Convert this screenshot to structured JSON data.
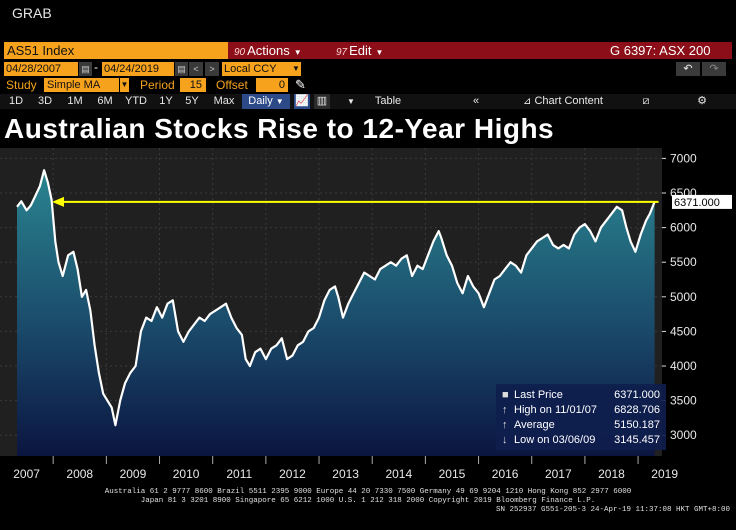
{
  "window": {
    "title": "GRAB"
  },
  "header": {
    "ticker": "AS51 Index",
    "actions_num": "90",
    "actions_label": "Actions",
    "edit_num": "97",
    "edit_label": "Edit",
    "security_code": "G 6397: ASX 200"
  },
  "controls": {
    "date_from": "04/28/2007",
    "date_to": "04/24/2019",
    "dash": "-",
    "prev": "<",
    "next": ">",
    "currency": "Local CCY",
    "study_label": "Study",
    "study_value": "Simple MA",
    "period_label": "Period",
    "period_value": "15",
    "offset_label": "Offset",
    "offset_value": "0"
  },
  "toolbar": {
    "periods": [
      "1D",
      "3D",
      "1M",
      "6M",
      "YTD",
      "1Y",
      "5Y",
      "Max"
    ],
    "frequency": "Daily",
    "table_label": "Table",
    "chart_content_label": "Chart Content"
  },
  "chart_title": "Australian Stocks Rise to 12-Year Highs",
  "chart_data": {
    "type": "area",
    "title": "Australian Stocks Rise to 12-Year Highs",
    "x_labels": [
      "2007",
      "2008",
      "2009",
      "2010",
      "2011",
      "2012",
      "2013",
      "2014",
      "2015",
      "2016",
      "2017",
      "2018",
      "2019"
    ],
    "y_ticks": [
      3000,
      3500,
      4000,
      4500,
      5000,
      5500,
      6000,
      6500,
      7000
    ],
    "ylim": [
      2700,
      7150
    ],
    "series": [
      {
        "name": "ASX 200 Last Price",
        "points": [
          [
            2007.32,
            6300
          ],
          [
            2007.4,
            6380
          ],
          [
            2007.5,
            6250
          ],
          [
            2007.58,
            6320
          ],
          [
            2007.66,
            6450
          ],
          [
            2007.75,
            6600
          ],
          [
            2007.83,
            6829
          ],
          [
            2007.9,
            6650
          ],
          [
            2007.97,
            6400
          ],
          [
            2008.04,
            5800
          ],
          [
            2008.1,
            5500
          ],
          [
            2008.18,
            5300
          ],
          [
            2008.28,
            5600
          ],
          [
            2008.38,
            5650
          ],
          [
            2008.46,
            5400
          ],
          [
            2008.54,
            5000
          ],
          [
            2008.62,
            5100
          ],
          [
            2008.7,
            4800
          ],
          [
            2008.78,
            4300
          ],
          [
            2008.86,
            3900
          ],
          [
            2008.94,
            3600
          ],
          [
            2009.02,
            3500
          ],
          [
            2009.1,
            3400
          ],
          [
            2009.17,
            3145
          ],
          [
            2009.26,
            3500
          ],
          [
            2009.35,
            3750
          ],
          [
            2009.45,
            3900
          ],
          [
            2009.55,
            4000
          ],
          [
            2009.65,
            4500
          ],
          [
            2009.75,
            4700
          ],
          [
            2009.85,
            4650
          ],
          [
            2009.95,
            4850
          ],
          [
            2010.05,
            4700
          ],
          [
            2010.15,
            4900
          ],
          [
            2010.25,
            4950
          ],
          [
            2010.35,
            4500
          ],
          [
            2010.45,
            4350
          ],
          [
            2010.55,
            4500
          ],
          [
            2010.65,
            4600
          ],
          [
            2010.75,
            4700
          ],
          [
            2010.85,
            4650
          ],
          [
            2010.95,
            4750
          ],
          [
            2011.05,
            4800
          ],
          [
            2011.15,
            4850
          ],
          [
            2011.25,
            4900
          ],
          [
            2011.35,
            4700
          ],
          [
            2011.45,
            4550
          ],
          [
            2011.55,
            4450
          ],
          [
            2011.62,
            4100
          ],
          [
            2011.7,
            4000
          ],
          [
            2011.8,
            4200
          ],
          [
            2011.9,
            4250
          ],
          [
            2012.0,
            4100
          ],
          [
            2012.1,
            4250
          ],
          [
            2012.2,
            4300
          ],
          [
            2012.3,
            4400
          ],
          [
            2012.4,
            4100
          ],
          [
            2012.5,
            4150
          ],
          [
            2012.6,
            4300
          ],
          [
            2012.7,
            4350
          ],
          [
            2012.8,
            4500
          ],
          [
            2012.9,
            4550
          ],
          [
            2013.0,
            4700
          ],
          [
            2013.1,
            4950
          ],
          [
            2013.2,
            5100
          ],
          [
            2013.3,
            5150
          ],
          [
            2013.36,
            5000
          ],
          [
            2013.45,
            4700
          ],
          [
            2013.55,
            4900
          ],
          [
            2013.65,
            5050
          ],
          [
            2013.75,
            5200
          ],
          [
            2013.85,
            5350
          ],
          [
            2013.95,
            5300
          ],
          [
            2014.05,
            5250
          ],
          [
            2014.15,
            5400
          ],
          [
            2014.25,
            5450
          ],
          [
            2014.35,
            5500
          ],
          [
            2014.45,
            5450
          ],
          [
            2014.55,
            5550
          ],
          [
            2014.65,
            5600
          ],
          [
            2014.75,
            5300
          ],
          [
            2014.85,
            5450
          ],
          [
            2014.95,
            5400
          ],
          [
            2015.05,
            5600
          ],
          [
            2015.15,
            5800
          ],
          [
            2015.25,
            5950
          ],
          [
            2015.3,
            5850
          ],
          [
            2015.4,
            5600
          ],
          [
            2015.5,
            5450
          ],
          [
            2015.6,
            5200
          ],
          [
            2015.7,
            5050
          ],
          [
            2015.8,
            5300
          ],
          [
            2015.9,
            5150
          ],
          [
            2016.0,
            5050
          ],
          [
            2016.1,
            4850
          ],
          [
            2016.2,
            5050
          ],
          [
            2016.3,
            5250
          ],
          [
            2016.4,
            5300
          ],
          [
            2016.5,
            5400
          ],
          [
            2016.6,
            5500
          ],
          [
            2016.7,
            5450
          ],
          [
            2016.8,
            5350
          ],
          [
            2016.9,
            5600
          ],
          [
            2017.0,
            5700
          ],
          [
            2017.1,
            5800
          ],
          [
            2017.2,
            5850
          ],
          [
            2017.3,
            5900
          ],
          [
            2017.4,
            5750
          ],
          [
            2017.5,
            5700
          ],
          [
            2017.6,
            5750
          ],
          [
            2017.7,
            5700
          ],
          [
            2017.8,
            5900
          ],
          [
            2017.9,
            6000
          ],
          [
            2018.0,
            6050
          ],
          [
            2018.1,
            5950
          ],
          [
            2018.2,
            5800
          ],
          [
            2018.3,
            6000
          ],
          [
            2018.4,
            6100
          ],
          [
            2018.5,
            6200
          ],
          [
            2018.6,
            6300
          ],
          [
            2018.7,
            6250
          ],
          [
            2018.78,
            6000
          ],
          [
            2018.86,
            5800
          ],
          [
            2018.95,
            5650
          ],
          [
            2019.05,
            5900
          ],
          [
            2019.15,
            6100
          ],
          [
            2019.22,
            6200
          ],
          [
            2019.31,
            6371
          ]
        ]
      }
    ],
    "horizontal_line": {
      "value": 6371,
      "label": "6371.000"
    },
    "legend": {
      "position": "bottom-right",
      "rows": [
        {
          "label": "Last Price",
          "value": "6371.000"
        },
        {
          "label": "High on 11/01/07",
          "value": "6828.706"
        },
        {
          "label": "Average",
          "value": "5150.187"
        },
        {
          "label": "Low on 03/06/09",
          "value": "3145.457"
        }
      ]
    }
  },
  "footer": {
    "line1": "Australia 61 2 9777 8600 Brazil 5511 2395 9000 Europe 44 20 7330 7500 Germany 49 69 9204 1210 Hong Kong 852 2977 6000",
    "line2": "Japan 81 3 3201 8900        Singapore 65 6212 1000        U.S. 1 212 318 2000        Copyright 2019 Bloomberg Finance L.P.",
    "line3": "SN 252937 G551-205-3 24-Apr-19 11:37:08 HKT  GMT+8:00"
  },
  "colors": {
    "accent": "#f6a21d",
    "menu_red": "#8b0e18",
    "area_top": "#2a7f8c",
    "area_bottom": "#0d1b4a",
    "line": "#ffffff",
    "hline": "#ffff00"
  }
}
